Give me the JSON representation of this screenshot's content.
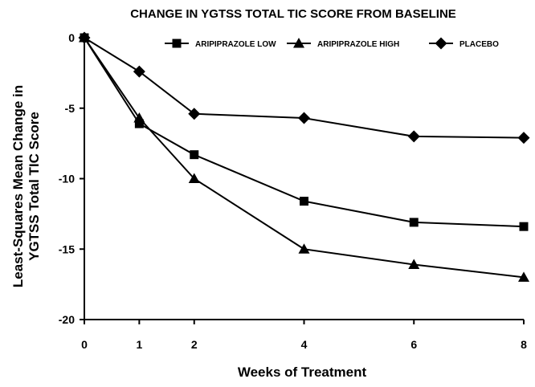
{
  "chart_data": {
    "type": "line",
    "title": "CHANGE IN YGTSS TOTAL TIC SCORE FROM BASELINE",
    "xlabel": "Weeks of Treatment",
    "ylabel_lines": [
      "Least-Squares Mean Change in",
      "YGTSS Total TIC Score"
    ],
    "x": [
      0,
      1,
      2,
      4,
      6,
      8
    ],
    "x_ticks": [
      "0",
      "1",
      "2",
      "4",
      "6",
      "8"
    ],
    "y_ticks": [
      "0",
      "-5",
      "-10",
      "-15",
      "-20"
    ],
    "xlim": [
      0,
      8
    ],
    "ylim": [
      -20,
      0
    ],
    "grid": false,
    "legend_position": "top",
    "series": [
      {
        "name": "ARIPIPRAZOLE LOW",
        "marker": "square",
        "values": [
          0,
          -6.1,
          -8.3,
          -11.6,
          -13.1,
          -13.4
        ]
      },
      {
        "name": "ARIPIPRAZOLE HIGH",
        "marker": "triangle",
        "values": [
          0,
          -5.7,
          -10.0,
          -15.0,
          -16.1,
          -17.0
        ]
      },
      {
        "name": "PLACEBO",
        "marker": "diamond",
        "values": [
          0,
          -2.4,
          -5.4,
          -5.7,
          -7.0,
          -7.1
        ]
      }
    ]
  }
}
